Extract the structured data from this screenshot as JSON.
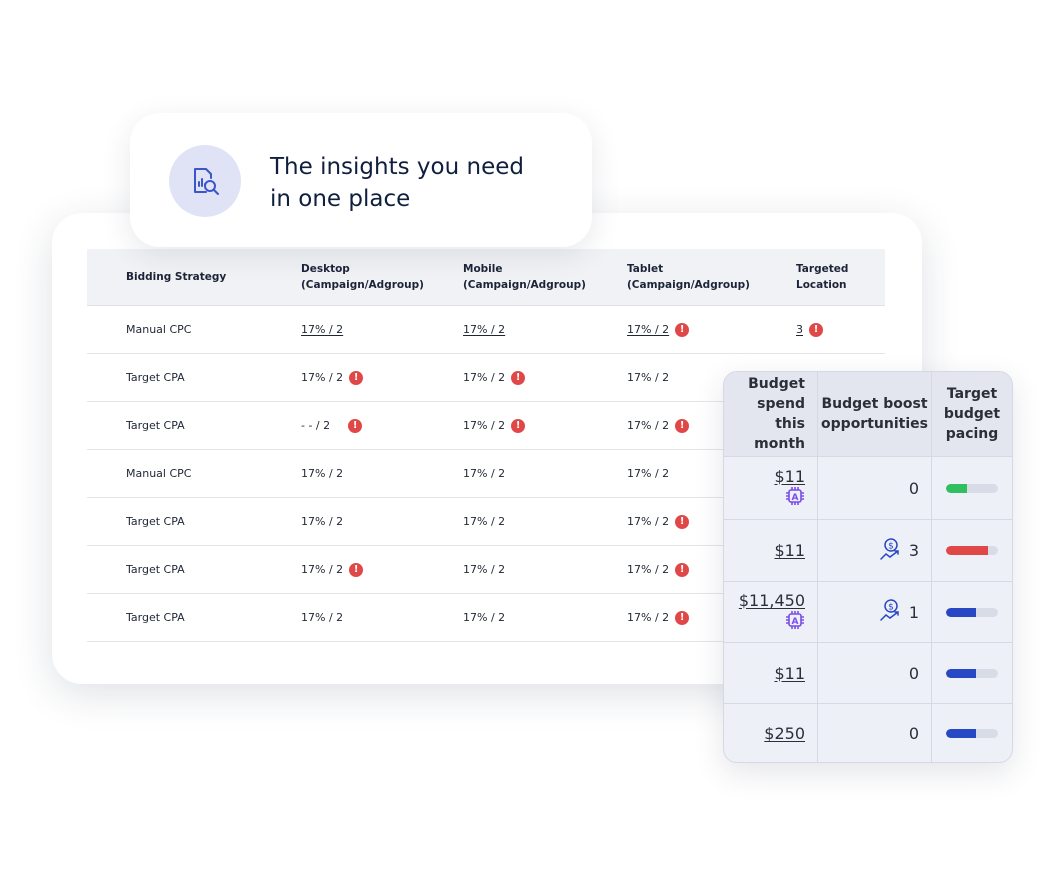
{
  "insight": {
    "title_line1": "The insights you need",
    "title_line2": "in one place",
    "icon": "report-search-icon"
  },
  "table": {
    "headers": [
      [
        "Bidding Strategy",
        ""
      ],
      [
        "Desktop",
        "(Campaign/Adgroup)"
      ],
      [
        "Mobile",
        "(Campaign/Adgroup)"
      ],
      [
        "Tablet",
        "(Campaign/Adgroup)"
      ],
      [
        "Targeted",
        "Location"
      ]
    ],
    "rows": [
      {
        "strategy": "Manual CPC",
        "cells": [
          {
            "v": "17% / 2",
            "link": true,
            "warn": false
          },
          {
            "v": "17% / 2",
            "link": true,
            "warn": false
          },
          {
            "v": "17% / 2",
            "link": true,
            "warn": true
          },
          {
            "v": "3",
            "link": true,
            "warn": true
          }
        ]
      },
      {
        "strategy": "Target CPA",
        "cells": [
          {
            "v": "17% / 2",
            "warn": true
          },
          {
            "v": "17% / 2",
            "warn": true
          },
          {
            "v": "17% / 2",
            "warn": false
          }
        ]
      },
      {
        "strategy": "Target CPA",
        "cells": [
          {
            "v": "- - / 2",
            "warn": true
          },
          {
            "v": "17% / 2",
            "warn": true
          },
          {
            "v": "17% / 2",
            "warn": true
          }
        ]
      },
      {
        "strategy": "Manual CPC",
        "cells": [
          {
            "v": "17% / 2",
            "warn": false
          },
          {
            "v": "17% / 2",
            "warn": false
          },
          {
            "v": "17% / 2",
            "warn": false
          }
        ]
      },
      {
        "strategy": "Target CPA",
        "cells": [
          {
            "v": "17% / 2",
            "warn": false
          },
          {
            "v": "17% / 2",
            "warn": false
          },
          {
            "v": "17% / 2",
            "warn": true
          }
        ]
      },
      {
        "strategy": "Target CPA",
        "cells": [
          {
            "v": "17% / 2",
            "warn": true
          },
          {
            "v": "17% / 2",
            "warn": false
          },
          {
            "v": "17% / 2",
            "warn": true
          }
        ]
      },
      {
        "strategy": "Target CPA",
        "cells": [
          {
            "v": "17% / 2",
            "warn": false
          },
          {
            "v": "17% / 2",
            "warn": false
          },
          {
            "v": "17% / 2",
            "warn": true
          }
        ]
      }
    ]
  },
  "budget": {
    "headers": [
      "Budget spend this month",
      "Budget boost opportunities",
      "Target budget pacing"
    ],
    "rows": [
      {
        "spend": "$11",
        "auto": true,
        "boost": "0",
        "boost_icon": false,
        "pacing": 0.4,
        "color": "#2fbf5e",
        "h": 63
      },
      {
        "spend": "$11",
        "auto": false,
        "boost": "3",
        "boost_icon": true,
        "pacing": 0.8,
        "color": "#e04848",
        "h": 62
      },
      {
        "spend": "$11,450",
        "auto": true,
        "boost": "1",
        "boost_icon": true,
        "pacing": 0.58,
        "color": "#2847c4",
        "h": 61
      },
      {
        "spend": "$11",
        "auto": false,
        "boost": "0",
        "boost_icon": false,
        "pacing": 0.58,
        "color": "#2847c4",
        "h": 61
      },
      {
        "spend": "$250",
        "auto": false,
        "boost": "0",
        "boost_icon": false,
        "pacing": 0.58,
        "color": "#2847c4",
        "h": 60
      }
    ]
  }
}
